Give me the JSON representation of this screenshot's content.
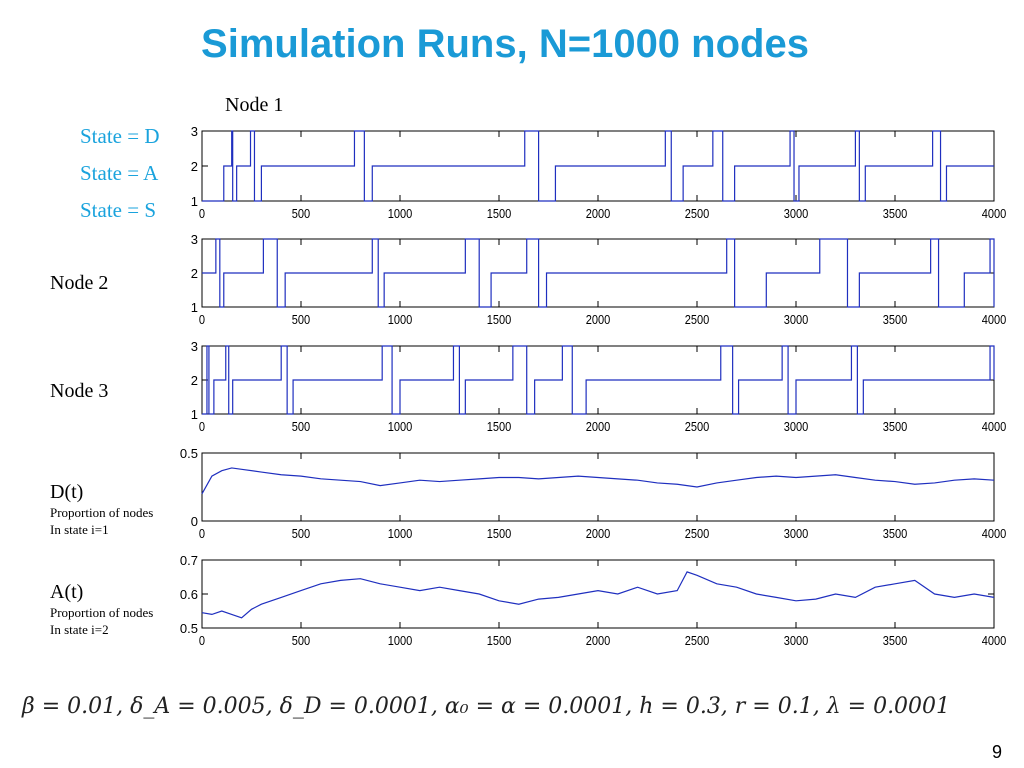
{
  "slide": {
    "title": "Simulation Runs, N=1000 nodes",
    "title_color": "#1a9ad6",
    "node1_label": "Node 1",
    "legend": [
      "State = D",
      "State = A",
      "State = S"
    ],
    "legend_color": "#1aa3dd",
    "side_labels": {
      "node2": "Node 2",
      "node3": "Node 3",
      "d_main": "D(t)",
      "d_sub1": "Proportion of nodes",
      "d_sub2": "In state i=1",
      "a_main": "A(t)",
      "a_sub1": "Proportion of nodes",
      "a_sub2": "In state i=2"
    },
    "params": "β = 0.01, δ_A = 0.005, δ_D = 0.0001, α₀ = α = 0.0001, h = 0.3, r = 0.1, λ = 0.0001",
    "page_number": "9"
  },
  "chart_data": [
    {
      "id": "node1",
      "type": "line",
      "xlim": [
        0,
        4000
      ],
      "ylim": [
        1,
        3
      ],
      "xticks": [
        0,
        500,
        1000,
        1500,
        2000,
        2500,
        3000,
        3500,
        4000
      ],
      "yticks": [
        1,
        2,
        3
      ],
      "series_color": "#1f2fbf",
      "series": [
        {
          "steps": [
            [
              0,
              1
            ],
            [
              110,
              2
            ],
            [
              150,
              3
            ],
            [
              155,
              1
            ],
            [
              175,
              2
            ],
            [
              245,
              3
            ],
            [
              265,
              1
            ],
            [
              300,
              2
            ],
            [
              770,
              3
            ],
            [
              820,
              1
            ],
            [
              860,
              2
            ],
            [
              1630,
              3
            ],
            [
              1700,
              1
            ],
            [
              1785,
              2
            ],
            [
              2340,
              3
            ],
            [
              2370,
              1
            ],
            [
              2430,
              2
            ],
            [
              2580,
              3
            ],
            [
              2630,
              1
            ],
            [
              2690,
              2
            ],
            [
              2970,
              3
            ],
            [
              2990,
              1
            ],
            [
              3015,
              2
            ],
            [
              3300,
              3
            ],
            [
              3320,
              1
            ],
            [
              3350,
              2
            ],
            [
              3690,
              3
            ],
            [
              3730,
              1
            ],
            [
              3760,
              2
            ],
            [
              4000,
              2
            ]
          ]
        }
      ]
    },
    {
      "id": "node2",
      "type": "line",
      "xlim": [
        0,
        4000
      ],
      "ylim": [
        1,
        3
      ],
      "xticks": [
        0,
        500,
        1000,
        1500,
        2000,
        2500,
        3000,
        3500,
        4000
      ],
      "yticks": [
        1,
        2,
        3
      ],
      "series_color": "#1f2fbf",
      "series": [
        {
          "steps": [
            [
              0,
              2
            ],
            [
              70,
              3
            ],
            [
              90,
              1
            ],
            [
              110,
              2
            ],
            [
              310,
              3
            ],
            [
              380,
              1
            ],
            [
              420,
              2
            ],
            [
              860,
              3
            ],
            [
              890,
              1
            ],
            [
              920,
              2
            ],
            [
              1330,
              3
            ],
            [
              1400,
              1
            ],
            [
              1460,
              2
            ],
            [
              1640,
              3
            ],
            [
              1700,
              1
            ],
            [
              1740,
              2
            ],
            [
              2650,
              3
            ],
            [
              2690,
              1
            ],
            [
              2850,
              2
            ],
            [
              3120,
              3
            ],
            [
              3260,
              1
            ],
            [
              3320,
              2
            ],
            [
              3680,
              3
            ],
            [
              3720,
              1
            ],
            [
              3850,
              2
            ],
            [
              3980,
              3
            ],
            [
              4000,
              1
            ]
          ]
        }
      ]
    },
    {
      "id": "node3",
      "type": "line",
      "xlim": [
        0,
        4000
      ],
      "ylim": [
        1,
        3
      ],
      "xticks": [
        0,
        500,
        1000,
        1500,
        2000,
        2500,
        3000,
        3500,
        4000
      ],
      "yticks": [
        1,
        2,
        3
      ],
      "series_color": "#1f2fbf",
      "series": [
        {
          "steps": [
            [
              0,
              1
            ],
            [
              25,
              3
            ],
            [
              35,
              1
            ],
            [
              60,
              2
            ],
            [
              120,
              3
            ],
            [
              135,
              1
            ],
            [
              155,
              2
            ],
            [
              400,
              3
            ],
            [
              430,
              1
            ],
            [
              460,
              2
            ],
            [
              910,
              3
            ],
            [
              960,
              1
            ],
            [
              1000,
              2
            ],
            [
              1270,
              3
            ],
            [
              1300,
              1
            ],
            [
              1330,
              2
            ],
            [
              1570,
              3
            ],
            [
              1640,
              1
            ],
            [
              1680,
              2
            ],
            [
              1820,
              3
            ],
            [
              1870,
              1
            ],
            [
              1940,
              2
            ],
            [
              2620,
              3
            ],
            [
              2680,
              1
            ],
            [
              2710,
              2
            ],
            [
              2930,
              3
            ],
            [
              2960,
              1
            ],
            [
              3000,
              2
            ],
            [
              3280,
              3
            ],
            [
              3310,
              1
            ],
            [
              3340,
              2
            ],
            [
              3980,
              3
            ],
            [
              4000,
              2
            ]
          ]
        }
      ]
    },
    {
      "id": "d_t",
      "type": "line",
      "xlim": [
        0,
        4000
      ],
      "ylim": [
        0,
        0.5
      ],
      "xticks": [
        0,
        500,
        1000,
        1500,
        2000,
        2500,
        3000,
        3500,
        4000
      ],
      "yticks": [
        0,
        0.5
      ],
      "series_color": "#1f2fbf",
      "series": [
        {
          "name": "",
          "x": [
            0,
            50,
            100,
            150,
            200,
            300,
            400,
            500,
            600,
            700,
            800,
            900,
            1000,
            1100,
            1200,
            1300,
            1400,
            1500,
            1600,
            1700,
            1800,
            1900,
            2000,
            2100,
            2200,
            2300,
            2400,
            2500,
            2600,
            2700,
            2800,
            2900,
            3000,
            3100,
            3200,
            3300,
            3400,
            3500,
            3600,
            3700,
            3800,
            3900,
            4000
          ],
          "y": [
            0.2,
            0.33,
            0.37,
            0.39,
            0.38,
            0.36,
            0.34,
            0.33,
            0.31,
            0.3,
            0.29,
            0.26,
            0.28,
            0.3,
            0.29,
            0.3,
            0.31,
            0.32,
            0.32,
            0.31,
            0.32,
            0.33,
            0.32,
            0.31,
            0.3,
            0.28,
            0.27,
            0.25,
            0.28,
            0.3,
            0.32,
            0.33,
            0.32,
            0.33,
            0.34,
            0.32,
            0.3,
            0.29,
            0.27,
            0.28,
            0.3,
            0.31,
            0.3
          ]
        }
      ]
    },
    {
      "id": "a_t",
      "type": "line",
      "xlim": [
        0,
        4000
      ],
      "ylim": [
        0.5,
        0.7
      ],
      "xticks": [
        0,
        500,
        1000,
        1500,
        2000,
        2500,
        3000,
        3500,
        4000
      ],
      "yticks": [
        0.5,
        0.6,
        0.7
      ],
      "series_color": "#1f2fbf",
      "series": [
        {
          "name": "",
          "x": [
            0,
            50,
            100,
            150,
            200,
            250,
            300,
            400,
            500,
            600,
            700,
            800,
            900,
            1000,
            1100,
            1200,
            1300,
            1400,
            1500,
            1600,
            1700,
            1800,
            1900,
            2000,
            2100,
            2200,
            2300,
            2400,
            2450,
            2500,
            2600,
            2700,
            2800,
            2900,
            3000,
            3100,
            3200,
            3300,
            3400,
            3500,
            3600,
            3700,
            3800,
            3900,
            4000
          ],
          "y": [
            0.545,
            0.54,
            0.55,
            0.54,
            0.53,
            0.555,
            0.57,
            0.59,
            0.61,
            0.63,
            0.64,
            0.645,
            0.63,
            0.62,
            0.61,
            0.62,
            0.61,
            0.6,
            0.58,
            0.57,
            0.585,
            0.59,
            0.6,
            0.61,
            0.6,
            0.62,
            0.6,
            0.61,
            0.665,
            0.655,
            0.63,
            0.62,
            0.6,
            0.59,
            0.58,
            0.585,
            0.6,
            0.59,
            0.62,
            0.63,
            0.64,
            0.6,
            0.59,
            0.6,
            0.59
          ]
        }
      ]
    }
  ]
}
